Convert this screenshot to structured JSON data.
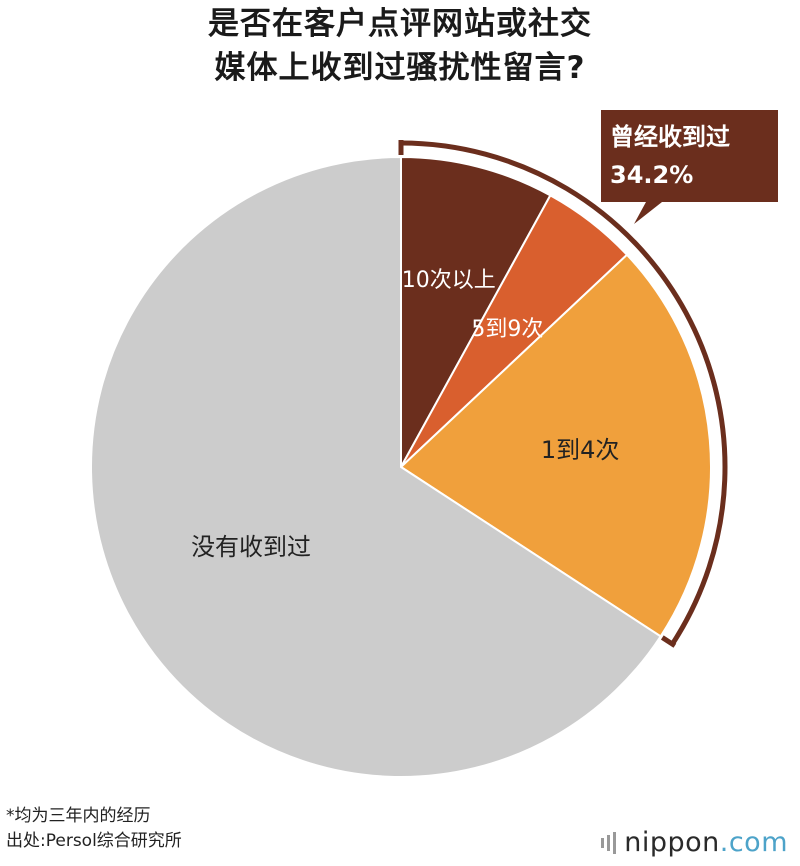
{
  "title": {
    "line1": "是否在客户点评网站或社交",
    "line2": "媒体上收到过骚扰性留言?"
  },
  "chart_data": {
    "type": "pie",
    "start": "12 o'clock, clockwise",
    "slices": [
      {
        "label": "10次以上",
        "value": 8.0,
        "color": "#6b2e1d",
        "label_color": "#ffffff"
      },
      {
        "label": "5到9次",
        "value": 5.0,
        "color": "#d95f2e",
        "label_color": "#ffffff"
      },
      {
        "label": "1到4次",
        "value": 21.2,
        "color": "#f0a03c",
        "label_color": "#222222"
      },
      {
        "label": "没有收到过",
        "value": 65.8,
        "color": "#cccccc",
        "label_color": "#222222"
      }
    ],
    "callout": {
      "label": "曾经收到过",
      "value": "34.2%",
      "color": "#6b2e1d"
    }
  },
  "notes": {
    "line1": "*均为三年内的经历",
    "line2": "出处:Persol综合研究所"
  },
  "brand": {
    "name": "nippon",
    "tld": ".com",
    "dot_color": "#4da3c9"
  }
}
